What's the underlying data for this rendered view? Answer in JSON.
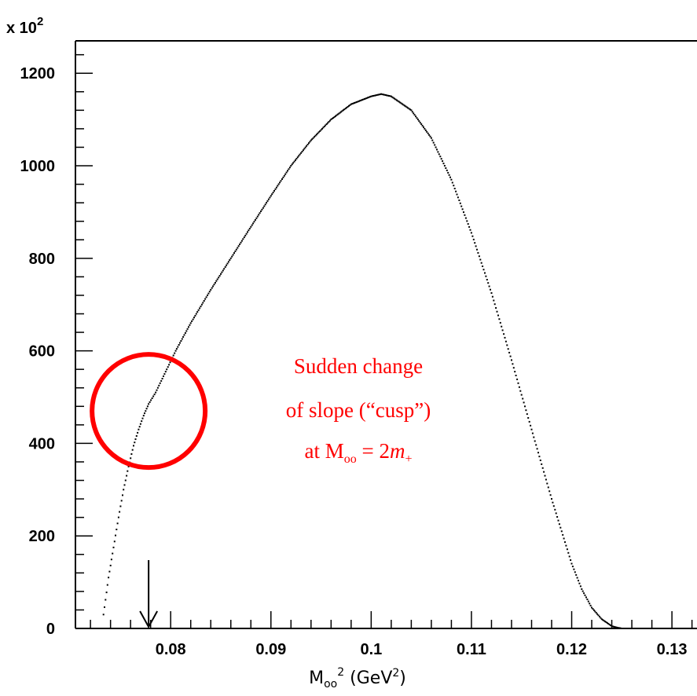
{
  "chart_data": {
    "type": "scatter",
    "title": "",
    "xlabel": {
      "base": "M",
      "sub": "oo",
      "sup": "2",
      "unit_open": " (GeV",
      "unit_sup": "2",
      "unit_close": ")"
    },
    "ylabel": "",
    "y_multiplier": {
      "base": "x 10",
      "exp": "2"
    },
    "xlim": [
      0.0705,
      0.1325
    ],
    "ylim": [
      0,
      1270
    ],
    "x_ticks": [
      {
        "value": 0.08,
        "label": "0.08"
      },
      {
        "value": 0.09,
        "label": "0.09"
      },
      {
        "value": 0.1,
        "label": "0.1"
      },
      {
        "value": 0.11,
        "label": "0.11"
      },
      {
        "value": 0.12,
        "label": "0.12"
      },
      {
        "value": 0.13,
        "label": "0.13"
      }
    ],
    "y_ticks": [
      {
        "value": 0,
        "label": "0"
      },
      {
        "value": 200,
        "label": "200"
      },
      {
        "value": 400,
        "label": "400"
      },
      {
        "value": 600,
        "label": "600"
      },
      {
        "value": 800,
        "label": "800"
      },
      {
        "value": 1000,
        "label": "1000"
      },
      {
        "value": 1200,
        "label": "1200"
      }
    ],
    "grid": false,
    "legend": "none",
    "series": [
      {
        "color": "#000000",
        "points": [
          [
            0.0733,
            30
          ],
          [
            0.0738,
            110
          ],
          [
            0.0743,
            175
          ],
          [
            0.0748,
            240
          ],
          [
            0.0753,
            300
          ],
          [
            0.0758,
            350
          ],
          [
            0.0763,
            395
          ],
          [
            0.0768,
            430
          ],
          [
            0.0773,
            460
          ],
          [
            0.0778,
            485
          ],
          [
            0.0785,
            510
          ],
          [
            0.0795,
            555
          ],
          [
            0.0805,
            600
          ],
          [
            0.082,
            660
          ],
          [
            0.084,
            732
          ],
          [
            0.086,
            800
          ],
          [
            0.088,
            868
          ],
          [
            0.09,
            935
          ],
          [
            0.092,
            1000
          ],
          [
            0.094,
            1055
          ],
          [
            0.096,
            1100
          ],
          [
            0.098,
            1133
          ],
          [
            0.1,
            1150
          ],
          [
            0.101,
            1155
          ],
          [
            0.102,
            1150
          ],
          [
            0.104,
            1120
          ],
          [
            0.106,
            1060
          ],
          [
            0.108,
            970
          ],
          [
            0.11,
            855
          ],
          [
            0.112,
            725
          ],
          [
            0.114,
            580
          ],
          [
            0.116,
            430
          ],
          [
            0.118,
            280
          ],
          [
            0.12,
            140
          ],
          [
            0.121,
            85
          ],
          [
            0.122,
            45
          ],
          [
            0.123,
            20
          ],
          [
            0.124,
            5
          ],
          [
            0.1245,
            2
          ],
          [
            0.125,
            0
          ],
          [
            0.126,
            0
          ]
        ]
      }
    ],
    "annotations": {
      "line1": "Sudden change",
      "line2": "of slope (“cusp”)",
      "line3_prefix": "at M",
      "line3_sub": "oo",
      "line3_mid": " = 2",
      "line3_italic": "m",
      "line3_sub2": "+",
      "arrow_x": 0.0778,
      "circle_center": [
        0.0778,
        470
      ],
      "color": "#ff0000"
    }
  }
}
